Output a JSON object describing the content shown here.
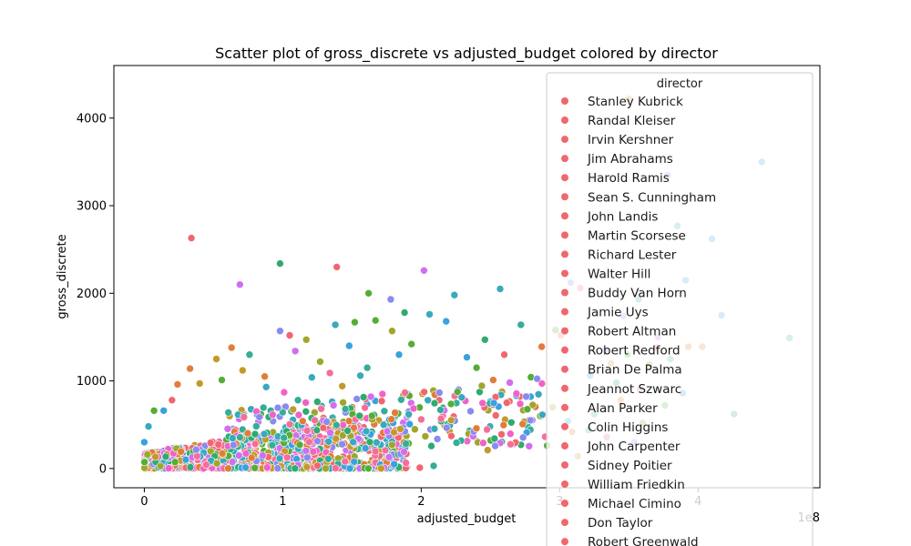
{
  "chart_data": {
    "type": "scatter",
    "title": "Scatter plot of gross_discrete vs adjusted_budget colored by director",
    "xlabel": "adjusted_budget",
    "ylabel": "gross_discrete",
    "x_offset_label": "1e8",
    "xlim": [
      -0.22,
      4.88
    ],
    "ylim": [
      -220,
      4600
    ],
    "x_ticks": [
      0,
      1,
      2,
      3,
      4
    ],
    "x_tick_labels": [
      "0",
      "1",
      "2",
      "3",
      "4"
    ],
    "y_ticks": [
      0,
      1000,
      2000,
      3000,
      4000
    ],
    "y_tick_labels": [
      "0",
      "1000",
      "2000",
      "3000",
      "4000"
    ],
    "grid": false,
    "legend_position": "upper-right",
    "legend_title": "director",
    "legend_entries": [
      "Stanley Kubrick",
      "Randal Kleiser",
      "Irvin Kershner",
      "Jim Abrahams",
      "Harold Ramis",
      "Sean S. Cunningham",
      "John Landis",
      "Martin Scorsese",
      "Richard Lester",
      "Walter Hill",
      "Buddy Van Horn",
      "Jamie Uys",
      "Robert Altman",
      "Robert Redford",
      "Brian De Palma",
      "Jeannot Szwarc",
      "Alan Parker",
      "Colin Higgins",
      "John Carpenter",
      "Sidney Poitier",
      "William Friedkin",
      "Michael Cimino",
      "Don Taylor",
      "Robert Greenwald"
    ],
    "legend_marker_color": "#f0676e",
    "palette": [
      "#f0676e",
      "#e07d3a",
      "#c39a2a",
      "#9fa62b",
      "#55ad36",
      "#2fab71",
      "#35ad98",
      "#37aabb",
      "#3ba1de",
      "#8a8af0",
      "#cf6ff0",
      "#f062c8",
      "#f56e9a"
    ],
    "points": [
      [
        0.34,
        2630,
        0
      ],
      [
        0.69,
        2100,
        10
      ],
      [
        0.98,
        2340,
        5
      ],
      [
        1.39,
        2300,
        0
      ],
      [
        2.02,
        2260,
        10
      ],
      [
        1.62,
        2000,
        4
      ],
      [
        1.78,
        1930,
        9
      ],
      [
        2.24,
        1980,
        7
      ],
      [
        2.57,
        2050,
        7
      ],
      [
        2.06,
        1760,
        7
      ],
      [
        1.67,
        1690,
        4
      ],
      [
        1.52,
        1670,
        4
      ],
      [
        1.88,
        1780,
        5
      ],
      [
        1.17,
        1470,
        3
      ],
      [
        0.98,
        1570,
        9
      ],
      [
        1.05,
        1520,
        0
      ],
      [
        0.63,
        1380,
        1
      ],
      [
        0.76,
        1300,
        6
      ],
      [
        0.87,
        1050,
        1
      ],
      [
        0.33,
        1140,
        1
      ],
      [
        1.38,
        1640,
        7
      ],
      [
        1.79,
        1570,
        3
      ],
      [
        2.18,
        1680,
        8
      ],
      [
        2.46,
        1470,
        5
      ],
      [
        2.72,
        1640,
        6
      ],
      [
        2.97,
        1580,
        4
      ],
      [
        3.01,
        1520,
        0
      ],
      [
        2.87,
        1390,
        1
      ],
      [
        2.6,
        1300,
        0
      ],
      [
        2.4,
        1150,
        4
      ],
      [
        2.64,
        980,
        10
      ],
      [
        2.79,
        820,
        8
      ],
      [
        2.95,
        700,
        3
      ],
      [
        3.06,
        540,
        8
      ],
      [
        3.09,
        420,
        1
      ],
      [
        2.72,
        270,
        5
      ],
      [
        2.66,
        280,
        4
      ],
      [
        2.48,
        210,
        2
      ],
      [
        2.09,
        30,
        6
      ],
      [
        1.99,
        10,
        0
      ],
      [
        1.61,
        1150,
        6
      ],
      [
        1.43,
        940,
        2
      ],
      [
        1.56,
        1060,
        7
      ],
      [
        1.84,
        1300,
        8
      ],
      [
        1.93,
        1420,
        4
      ],
      [
        2.33,
        1270,
        8
      ],
      [
        2.52,
        1010,
        1
      ],
      [
        2.27,
        900,
        9
      ],
      [
        2.13,
        780,
        0
      ],
      [
        1.72,
        850,
        11
      ],
      [
        1.27,
        1220,
        3
      ],
      [
        1.34,
        1090,
        12
      ],
      [
        1.21,
        1040,
        7
      ],
      [
        1.48,
        1400,
        8
      ],
      [
        1.09,
        1340,
        10
      ],
      [
        0.88,
        930,
        7
      ],
      [
        0.71,
        1120,
        2
      ],
      [
        0.56,
        1010,
        4
      ],
      [
        0.52,
        1250,
        2
      ],
      [
        0.4,
        970,
        2
      ],
      [
        0.24,
        960,
        1
      ],
      [
        0.2,
        780,
        0
      ],
      [
        0.14,
        660,
        8
      ],
      [
        0.07,
        660,
        4
      ],
      [
        0.03,
        480,
        7
      ],
      [
        0.0,
        300,
        8
      ],
      [
        1.01,
        870,
        11
      ],
      [
        1.11,
        780,
        6
      ],
      [
        1.23,
        640,
        3
      ],
      [
        1.36,
        580,
        7
      ],
      [
        1.5,
        700,
        1
      ],
      [
        1.66,
        610,
        5
      ],
      [
        1.91,
        650,
        9
      ],
      [
        2.0,
        560,
        12
      ],
      [
        2.17,
        490,
        2
      ],
      [
        2.35,
        430,
        6
      ],
      [
        2.58,
        390,
        0
      ],
      [
        2.77,
        480,
        7
      ],
      [
        2.86,
        600,
        3
      ],
      [
        2.91,
        260,
        4
      ],
      [
        3.08,
        2120,
        9
      ],
      [
        3.15,
        2060,
        11
      ],
      [
        3.46,
        1740,
        9
      ],
      [
        3.57,
        1930,
        7
      ],
      [
        3.71,
        1500,
        10
      ],
      [
        3.7,
        1380,
        0
      ],
      [
        3.93,
        1390,
        1
      ],
      [
        3.8,
        1250,
        6
      ],
      [
        3.65,
        1190,
        3
      ],
      [
        3.49,
        1300,
        4
      ],
      [
        3.33,
        1350,
        9
      ],
      [
        3.37,
        1200,
        2
      ],
      [
        3.22,
        1060,
        8
      ],
      [
        3.41,
        980,
        5
      ],
      [
        3.58,
        900,
        12
      ],
      [
        3.76,
        720,
        4
      ],
      [
        3.89,
        860,
        8
      ],
      [
        3.44,
        780,
        1
      ],
      [
        3.25,
        620,
        6
      ],
      [
        3.6,
        520,
        3
      ],
      [
        3.21,
        440,
        7
      ],
      [
        3.34,
        360,
        0
      ],
      [
        3.13,
        140,
        2
      ],
      [
        3.54,
        300,
        9
      ],
      [
        4.03,
        1390,
        1
      ],
      [
        4.1,
        2620,
        8
      ],
      [
        4.46,
        3500,
        8
      ],
      [
        4.17,
        1750,
        8
      ],
      [
        4.26,
        620,
        5
      ],
      [
        4.66,
        1490,
        6
      ],
      [
        3.5,
        4220,
        2
      ],
      [
        3.78,
        3350,
        9
      ],
      [
        3.85,
        2770,
        7
      ],
      [
        3.91,
        2150,
        8
      ]
    ]
  }
}
